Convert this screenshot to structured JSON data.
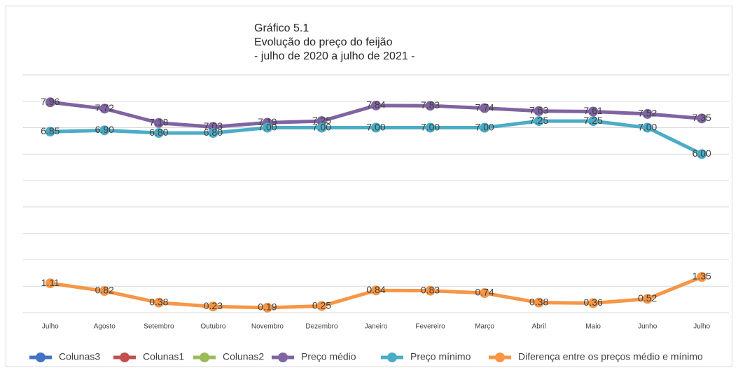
{
  "chart_data": {
    "type": "line",
    "title": "Gráfico 5.1",
    "subtitle": [
      "Evolução do preço do feijão",
      "- julho de 2020 a julho de 2021 -"
    ],
    "categories": [
      "Julho",
      "Agosto",
      "Setembro",
      "Outubro",
      "Novembro",
      "Dezembro",
      "Janeiro",
      "Fevereiro",
      "Março",
      "Abril",
      "Maio",
      "Junho",
      "Julho"
    ],
    "ylim": [
      0,
      9
    ],
    "yticks": [
      0,
      1,
      2,
      3,
      4,
      5,
      6,
      7,
      8,
      9
    ],
    "grid": true,
    "legend": "bottom",
    "series": [
      {
        "name": "Colunas3",
        "color": "#4472c4",
        "values": [
          null,
          null,
          null,
          null,
          null,
          null,
          null,
          null,
          null,
          null,
          null,
          null,
          null
        ]
      },
      {
        "name": "Colunas1",
        "color": "#c0504d",
        "values": [
          null,
          null,
          null,
          null,
          null,
          null,
          null,
          null,
          null,
          null,
          null,
          null,
          null
        ]
      },
      {
        "name": "Colunas2",
        "color": "#9bbb59",
        "values": [
          null,
          null,
          null,
          null,
          null,
          null,
          null,
          null,
          null,
          null,
          null,
          null,
          null
        ]
      },
      {
        "name": "Preço médio",
        "color": "#8064a2",
        "values": [
          7.96,
          7.72,
          7.18,
          7.03,
          7.19,
          7.25,
          7.84,
          7.83,
          7.74,
          7.63,
          7.61,
          7.52,
          7.35
        ],
        "value_labels": [
          "7.96",
          "7.72",
          "7.18",
          "7.03",
          "7.19",
          "7.25",
          "7.84",
          "7.83",
          "7.74",
          "7.63",
          "7.61",
          "7.52",
          "7.35"
        ]
      },
      {
        "name": "Preço mínimo",
        "color": "#4bacc6",
        "values": [
          6.85,
          6.9,
          6.8,
          6.8,
          7,
          7,
          7,
          7,
          7,
          7.25,
          7.25,
          7,
          6
        ],
        "value_labels": [
          "6.85",
          "6.90",
          "6.80",
          "6.80",
          "7.00",
          "7.00",
          "7.00",
          "7.00",
          "7.00",
          "7.25",
          "7.25",
          "7.00",
          "6.00"
        ]
      },
      {
        "name": "Diferença entre os preços médio e mínimo",
        "color": "#f79646",
        "values": [
          1.11,
          0.82,
          0.38,
          0.23,
          0.19,
          0.25,
          0.84,
          0.83,
          0.74,
          0.38,
          0.36,
          0.52,
          1.35
        ],
        "value_labels": [
          "1.11",
          "0.82",
          "0.38",
          "0.23",
          "0.19",
          "0.25",
          "0.84",
          "0.83",
          "0.74",
          "0.38",
          "0.36",
          "0.52",
          "1.35"
        ]
      }
    ]
  }
}
